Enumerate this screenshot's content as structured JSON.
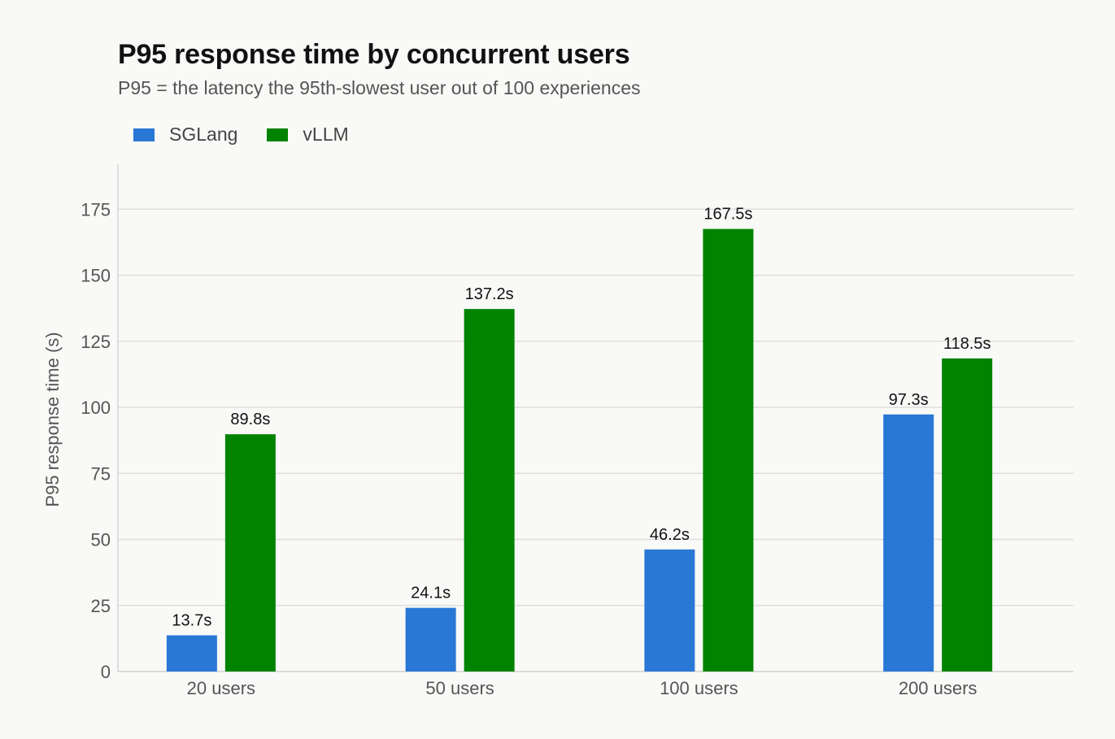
{
  "chart_data": {
    "type": "bar",
    "title": "P95 response time by concurrent users",
    "subtitle": "P95 = the latency the 95th-slowest user out of 100 experiences",
    "xlabel": "",
    "ylabel": "P95 response time (s)",
    "ylim": [
      0,
      192
    ],
    "yticks": [
      0,
      25,
      50,
      75,
      100,
      125,
      150,
      175
    ],
    "grid": true,
    "legend_position": "top-left",
    "categories": [
      "20 users",
      "50 users",
      "100 users",
      "200 users"
    ],
    "series": [
      {
        "name": "SGLang",
        "color": "#2a78d6",
        "values": [
          13.7,
          24.1,
          46.2,
          97.3
        ],
        "labels": [
          "13.7s",
          "24.1s",
          "46.2s",
          "97.3s"
        ]
      },
      {
        "name": "vLLM",
        "color": "#008300",
        "values": [
          89.8,
          137.2,
          167.5,
          118.5
        ],
        "labels": [
          "89.8s",
          "137.2s",
          "167.5s",
          "118.5s"
        ]
      }
    ]
  }
}
